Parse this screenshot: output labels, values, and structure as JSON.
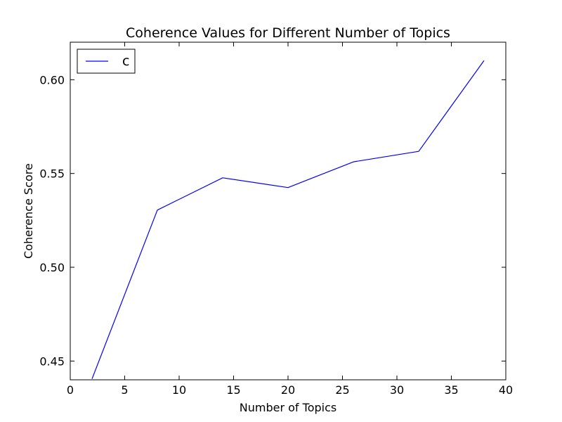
{
  "chart_data": {
    "type": "line",
    "title": "Coherence Values for Different Number of Topics",
    "xlabel": "Number of Topics",
    "ylabel": "Coherence Score",
    "xlim": [
      0,
      40
    ],
    "ylim": [
      0.44,
      0.62
    ],
    "xticks": [
      0,
      5,
      10,
      15,
      20,
      25,
      30,
      35,
      40
    ],
    "xtick_labels": [
      "0",
      "5",
      "10",
      "15",
      "20",
      "25",
      "30",
      "35",
      "40"
    ],
    "yticks": [
      0.45,
      0.5,
      0.55,
      0.6
    ],
    "ytick_labels": [
      "0.45",
      "0.50",
      "0.55",
      "0.60"
    ],
    "grid": false,
    "legend": {
      "position": "top-left",
      "entries": [
        "c"
      ]
    },
    "series": [
      {
        "name": "c",
        "color": "#0000ff",
        "x": [
          2,
          8,
          14,
          20,
          26,
          32,
          38
        ],
        "y": [
          0.4405,
          0.5305,
          0.5477,
          0.5425,
          0.5562,
          0.5618,
          0.6102
        ]
      }
    ]
  }
}
